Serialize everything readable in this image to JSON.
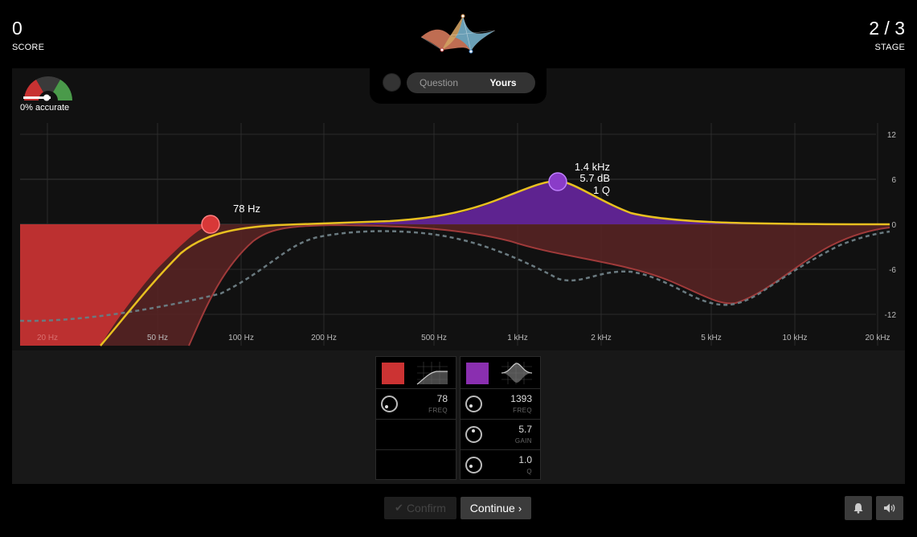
{
  "header": {
    "score_value": "0",
    "score_label": "SCORE",
    "stage_value": "2 / 3",
    "stage_label": "STAGE"
  },
  "toggle": {
    "options": [
      "Question",
      "Yours"
    ],
    "active": "Yours"
  },
  "accuracy": {
    "label": "0% accurate",
    "value_percent": 0
  },
  "graph": {
    "x_ticks": [
      "20 Hz",
      "50 Hz",
      "100 Hz",
      "200 Hz",
      "500 Hz",
      "1 kHz",
      "2 kHz",
      "5 kHz",
      "10 kHz",
      "20 kHz"
    ],
    "y_ticks": [
      "12",
      "6",
      "0",
      "-6",
      "-12"
    ],
    "band1_label": "78 Hz",
    "band2_label_freq": "1.4 kHz",
    "band2_label_gain": "5.7 dB",
    "band2_label_q": "1 Q"
  },
  "bands": [
    {
      "color": "#cc3333",
      "type": "highpass",
      "params": [
        {
          "value": "78",
          "label": "FREQ"
        }
      ]
    },
    {
      "color": "#8a2fb0",
      "type": "peak",
      "params": [
        {
          "value": "1393",
          "label": "FREQ"
        },
        {
          "value": "5.7",
          "label": "GAIN"
        },
        {
          "value": "1.0",
          "label": "Q"
        }
      ]
    }
  ],
  "footer": {
    "confirm_label": "Confirm",
    "continue_label": "Continue"
  },
  "icons": {
    "confirm": "check-icon",
    "continue": "chevron-right-icon",
    "notifications": "bell-icon",
    "sound": "speaker-icon"
  }
}
